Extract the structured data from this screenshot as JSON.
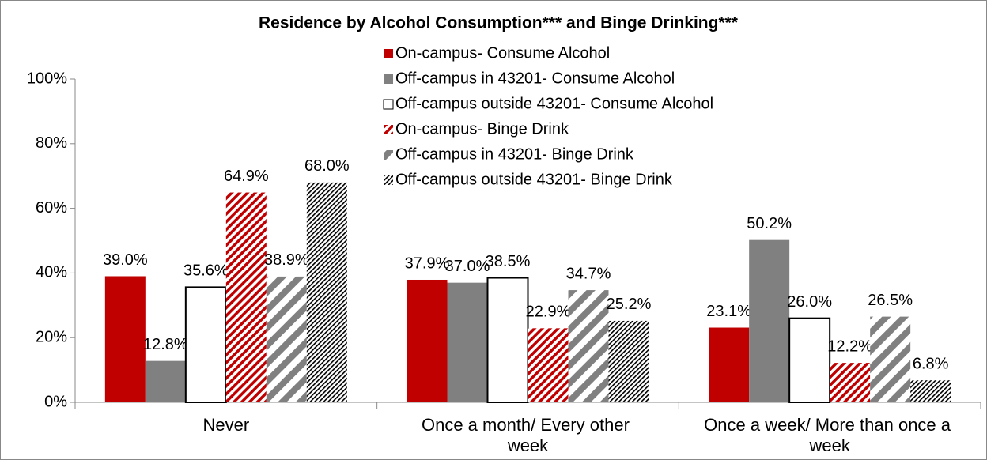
{
  "chart_data": {
    "type": "bar",
    "title": "Residence by Alcohol Consumption*** and Binge Drinking***",
    "categories": [
      "Never",
      "Once a month/ Every other week",
      "Once a week/ More than once a week"
    ],
    "series": [
      {
        "name": "On-campus- Consume Alcohol",
        "color": "#c00000",
        "pattern": "solid",
        "values": [
          39.0,
          37.9,
          23.1
        ],
        "value_labels": [
          "39.0%",
          "37.9%",
          "23.1%"
        ]
      },
      {
        "name": "Off-campus in 43201- Consume Alcohol",
        "color": "#808080",
        "pattern": "solid",
        "values": [
          12.8,
          37.0,
          50.2
        ],
        "value_labels": [
          "12.8%",
          "37.0%",
          "50.2%"
        ]
      },
      {
        "name": "Off-campus outside 43201- Consume Alcohol",
        "color": "#ffffff",
        "pattern": "outline",
        "values": [
          35.6,
          38.5,
          26.0
        ],
        "value_labels": [
          "35.6%",
          "38.5%",
          "26.0%"
        ]
      },
      {
        "name": "On-campus- Binge Drink",
        "color": "#c00000",
        "pattern": "dense-hatch",
        "values": [
          64.9,
          22.9,
          12.2
        ],
        "value_labels": [
          "64.9%",
          "22.9%",
          "12.2%"
        ]
      },
      {
        "name": "Off-campus in 43201- Binge Drink",
        "color": "#808080",
        "pattern": "wide-hatch",
        "values": [
          38.9,
          34.7,
          26.5
        ],
        "value_labels": [
          "38.9%",
          "34.7%",
          "26.5%"
        ]
      },
      {
        "name": "Off-campus outside 43201- Binge Drink",
        "color": "#000000",
        "pattern": "fine-hatch",
        "values": [
          68.0,
          25.2,
          6.8
        ],
        "value_labels": [
          "68.0%",
          "25.2%",
          "6.8%"
        ]
      }
    ],
    "ylim": [
      0,
      100
    ],
    "yticks": [
      {
        "value": 0,
        "label": "0%"
      },
      {
        "value": 20,
        "label": "20%"
      },
      {
        "value": 40,
        "label": "40%"
      },
      {
        "value": 60,
        "label": "60%"
      },
      {
        "value": 80,
        "label": "80%"
      },
      {
        "value": 100,
        "label": "100%"
      }
    ],
    "grid": false
  }
}
